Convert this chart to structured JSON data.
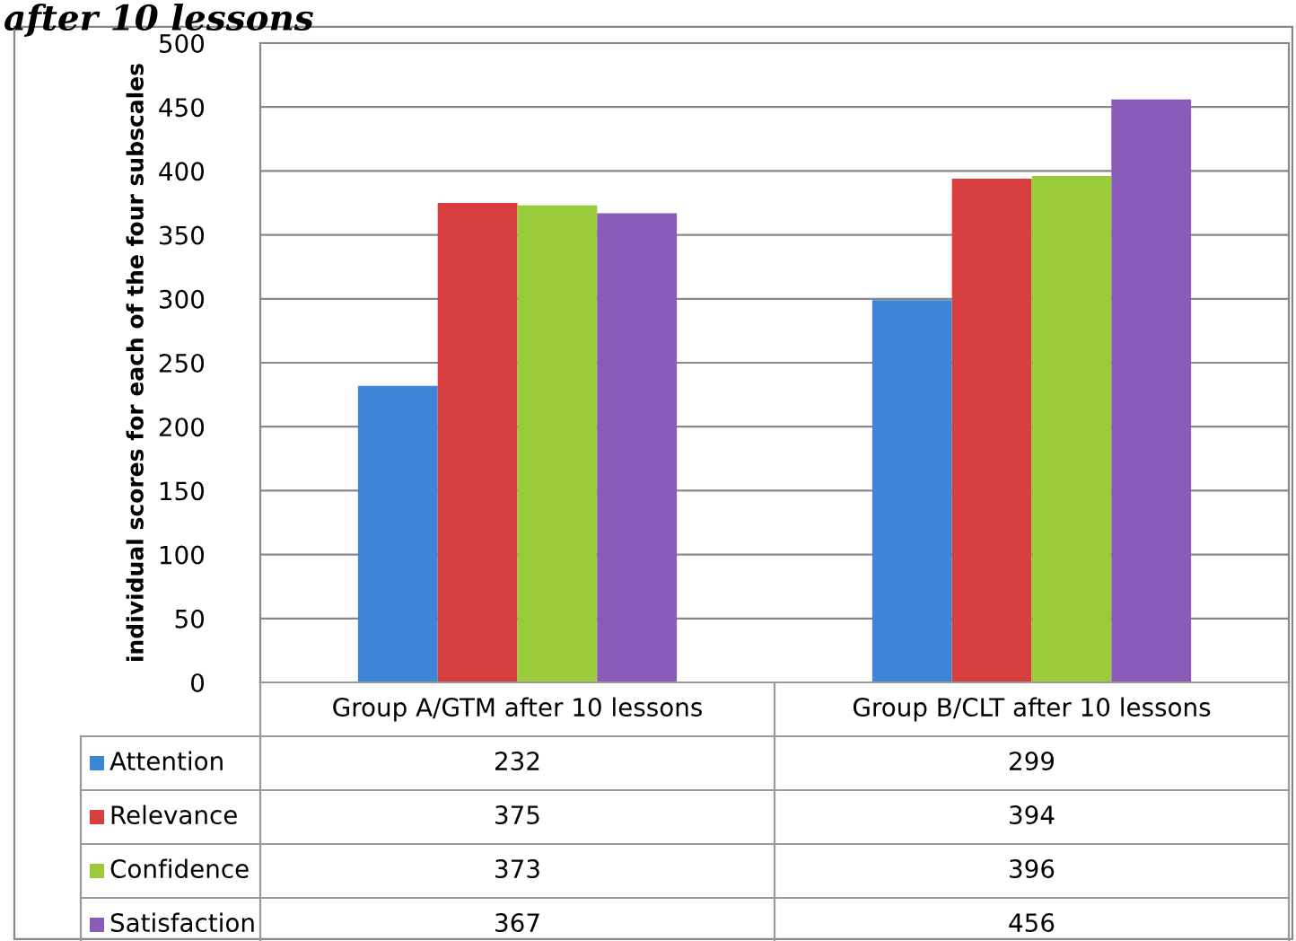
{
  "chart_data": {
    "type": "bar",
    "title": "after 10 lessons",
    "ylabel": "individual scores for each of the four subscales",
    "categories": [
      "Group A/GTM after 10 lessons",
      "Group B/CLT after 10 lessons"
    ],
    "series": [
      {
        "name": "Attention",
        "color": "#3d85d6",
        "values": [
          232,
          299
        ]
      },
      {
        "name": "Relevance",
        "color": "#d63f3e",
        "values": [
          375,
          394
        ]
      },
      {
        "name": "Confidence",
        "color": "#9acb3b",
        "values": [
          373,
          396
        ]
      },
      {
        "name": "Satisfaction",
        "color": "#8a5bb8",
        "values": [
          367,
          456
        ]
      }
    ],
    "ylim": [
      0,
      500
    ],
    "yticks": [
      0,
      50,
      100,
      150,
      200,
      250,
      300,
      350,
      400,
      450,
      500
    ],
    "grid": "y",
    "legend": "bottom",
    "data_labels": true
  }
}
